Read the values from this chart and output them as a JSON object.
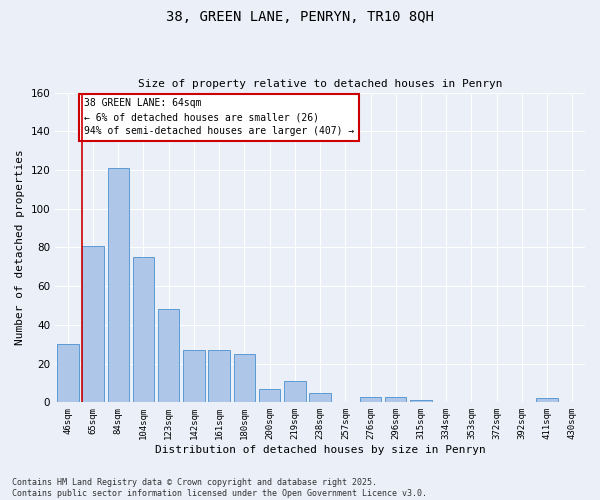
{
  "title1": "38, GREEN LANE, PENRYN, TR10 8QH",
  "title2": "Size of property relative to detached houses in Penryn",
  "xlabel": "Distribution of detached houses by size in Penryn",
  "ylabel": "Number of detached properties",
  "categories": [
    "46sqm",
    "65sqm",
    "84sqm",
    "104sqm",
    "123sqm",
    "142sqm",
    "161sqm",
    "180sqm",
    "200sqm",
    "219sqm",
    "238sqm",
    "257sqm",
    "276sqm",
    "296sqm",
    "315sqm",
    "334sqm",
    "353sqm",
    "372sqm",
    "392sqm",
    "411sqm",
    "430sqm"
  ],
  "values": [
    30,
    81,
    121,
    75,
    48,
    27,
    27,
    25,
    7,
    11,
    5,
    0,
    3,
    3,
    1,
    0,
    0,
    0,
    0,
    2,
    0
  ],
  "bar_color": "#aec6e8",
  "bar_edge_color": "#5b9bd5",
  "red_line_x": 0.55,
  "annotation_text": "38 GREEN LANE: 64sqm\n← 6% of detached houses are smaller (26)\n94% of semi-detached houses are larger (407) →",
  "annotation_box_color": "#ffffff",
  "annotation_box_edge_color": "#cc0000",
  "ylim": [
    0,
    160
  ],
  "yticks": [
    0,
    20,
    40,
    60,
    80,
    100,
    120,
    140,
    160
  ],
  "background_color": "#eaeff8",
  "grid_color": "#ffffff",
  "footer_line1": "Contains HM Land Registry data © Crown copyright and database right 2025.",
  "footer_line2": "Contains public sector information licensed under the Open Government Licence v3.0."
}
